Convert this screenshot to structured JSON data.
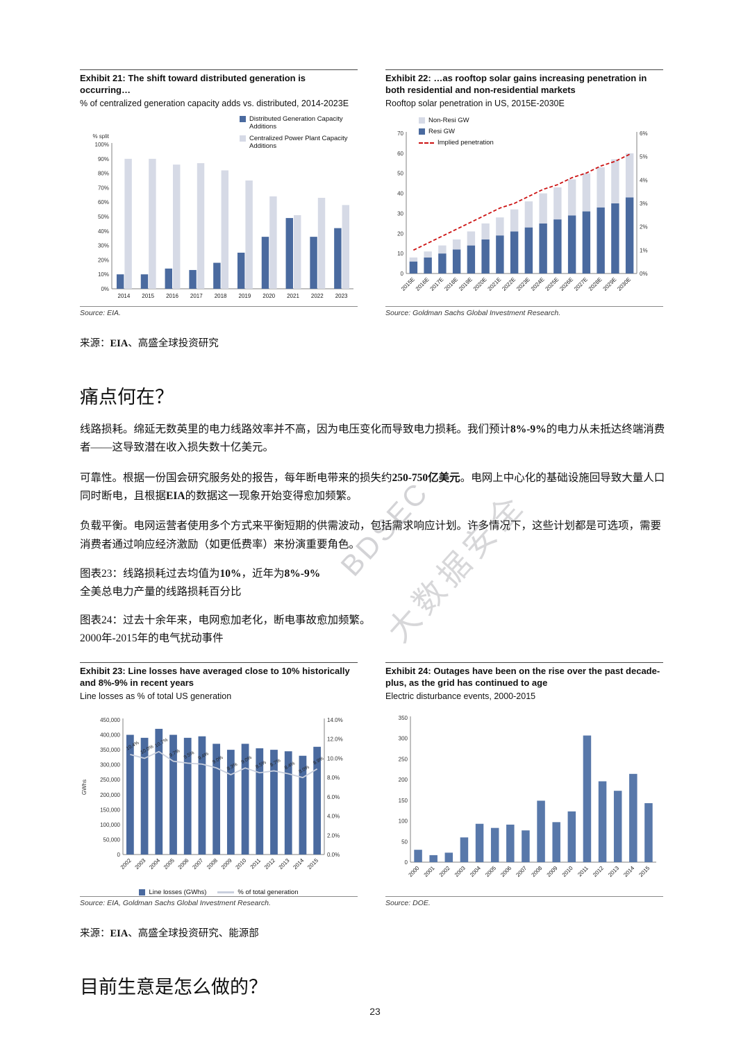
{
  "page_number": "23",
  "watermark": {
    "en": "BDSEC",
    "cn": "大数据安全"
  },
  "sections": {
    "pain_heading": "痛点何在？",
    "business_heading": "目前生意是怎么做的？",
    "paragraphs": {
      "p1": {
        "s1": "线路损耗。绵延无数英里的电力线路效率并不高，因为电压变化而导致电力损耗。我们预计",
        "b1": "8%-9%",
        "s2": "的电力从未抵达终端消费者——这导致潜在收入损失数十亿美元。"
      },
      "p2": {
        "s1": "可靠性。根据一份国会研究服务处的报告，每年断电带来的损失约",
        "b1": "250-750亿美元",
        "s2": "。电网上中心化的基础设施回导致大量人口同时断电，且根据",
        "b2": "EIA",
        "s3": "的数据这一现象开始变得愈加频繁。"
      },
      "p3": {
        "s1": "负载平衡。电网运营者使用多个方式来平衡短期的供需波动，包括需求响应计划。许多情况下，这些计划都是可选项，需要消费者通过响应经济激励（如更低费率）来扮演重要角色。"
      }
    },
    "fig23_caption": {
      "s1": "图表23：线路损耗过去均值为",
      "b1": "10%",
      "s2": "，近年为",
      "b2": "8%-9%",
      "line2": "全美总电力产量的线路损耗百分比"
    },
    "fig24_caption": {
      "line1": "图表24：过去十余年来，电网愈加老化，断电事故愈加频繁。",
      "line2": "2000年-2015年的电气扰动事件"
    },
    "source_top": {
      "pre": "来源：",
      "b": "EIA",
      "post": "、高盛全球投资研究"
    },
    "source_bottom": {
      "pre": "来源：",
      "b": "EIA",
      "post": "、高盛全球投资研究、能源部"
    }
  },
  "chart_data": [
    {
      "id": "ex21",
      "type": "bar",
      "variant": "grouped",
      "title": "Exhibit 21: The shift toward distributed generation is occurring…",
      "subtitle": "% of centralized generation capacity adds vs. distributed, 2014-2023E",
      "axis_note": "% split",
      "categories": [
        "2014",
        "2015",
        "2016",
        "2017",
        "2018",
        "2019",
        "2020",
        "2021",
        "2022",
        "2023"
      ],
      "series": [
        {
          "name": "Distributed Generation Capacity Additions",
          "color": "#4a6a9f",
          "values": [
            10,
            10,
            14,
            13,
            18,
            25,
            36,
            49,
            36,
            42
          ]
        },
        {
          "name": "Centralized Power Plant Capacity Additions",
          "color": "#d6dae6",
          "values": [
            90,
            90,
            86,
            87,
            82,
            75,
            64,
            51,
            63,
            58
          ]
        }
      ],
      "ylim": [
        0,
        100
      ],
      "ytick_step": 10,
      "yformat": "percent",
      "legend_position": "top-right",
      "source": "Source: EIA."
    },
    {
      "id": "ex22",
      "type": "bar",
      "variant": "stacked-with-line",
      "title": "Exhibit 22: …as rooftop solar gains increasing penetration in both residential and non-residential markets",
      "subtitle": "Rooftop solar penetration in US, 2015E-2030E",
      "categories": [
        "2015E",
        "2016E",
        "2017E",
        "2018E",
        "2019E",
        "2020E",
        "2021E",
        "2022E",
        "2023E",
        "2024E",
        "2025E",
        "2026E",
        "2027E",
        "2028E",
        "2029E",
        "2030E"
      ],
      "series": [
        {
          "name": "Resi GW",
          "color": "#4a6a9f",
          "values": [
            6,
            8,
            10,
            12,
            14,
            17,
            19,
            21,
            23,
            25,
            27,
            29,
            31,
            33,
            35,
            38
          ]
        },
        {
          "name": "Non-Resi GW",
          "color": "#d6dae6",
          "values": [
            2,
            3,
            4,
            5,
            7,
            8,
            9,
            11,
            13,
            15,
            16,
            18,
            19,
            20,
            22,
            22
          ]
        }
      ],
      "line": {
        "name": "Implied penetration",
        "color": "#cc1111",
        "dashed": true,
        "axis": "right",
        "values": [
          1.0,
          1.3,
          1.6,
          1.9,
          2.2,
          2.5,
          2.8,
          3.0,
          3.3,
          3.6,
          3.8,
          4.1,
          4.3,
          4.6,
          4.8,
          5.1
        ]
      },
      "ylim": [
        0,
        70
      ],
      "ytick_step": 10,
      "yformat": "plain",
      "y2lim": [
        0,
        6
      ],
      "y2tick_step": 1,
      "y2format": "percent",
      "legend_position": "top-left",
      "source": "Source: Goldman Sachs Global Investment Research."
    },
    {
      "id": "ex23",
      "type": "bar",
      "variant": "bar-with-line",
      "title": "Exhibit 23: Line losses have averaged close to 10% historically and 8%-9% in recent years",
      "subtitle": "Line losses as % of total US generation",
      "ylabel": "GWhs",
      "categories": [
        "2002",
        "2003",
        "2004",
        "2005",
        "2006",
        "2007",
        "2008",
        "2009",
        "2010",
        "2011",
        "2012",
        "2013",
        "2014",
        "2015"
      ],
      "series": [
        {
          "name": "Line losses (GWhs)",
          "color": "#4a6a9f",
          "values": [
            400000,
            390000,
            420000,
            400000,
            390000,
            395000,
            370000,
            350000,
            370000,
            355000,
            350000,
            345000,
            330000,
            360000
          ]
        }
      ],
      "line": {
        "name": "% of total generation",
        "color": "#c9cfdd",
        "dashed": false,
        "axis": "right",
        "values": [
          10.4,
          10.0,
          10.7,
          9.7,
          9.5,
          9.4,
          9.0,
          8.3,
          9.0,
          8.5,
          8.7,
          8.4,
          8.0,
          8.9
        ],
        "labels": true
      },
      "ylim": [
        0,
        450000
      ],
      "ytick_step": 50000,
      "yformat": "thousands",
      "y2lim": [
        0,
        14
      ],
      "y2tick_step": 2,
      "y2format": "percent1",
      "legend_position": "bottom",
      "source": "Source: EIA, Goldman Sachs Global Investment Research."
    },
    {
      "id": "ex24",
      "type": "bar",
      "variant": "single",
      "title": "Exhibit 24: Outages have been on the rise over the past decade-plus, as the grid has continued to age",
      "subtitle": "Electric disturbance events, 2000-2015",
      "categories": [
        "2000",
        "2001",
        "2002",
        "2003",
        "2004",
        "2005",
        "2006",
        "2007",
        "2008",
        "2009",
        "2010",
        "2011",
        "2012",
        "2013",
        "2014",
        "2015"
      ],
      "series": [
        {
          "name": "Electric disturbance events",
          "color": "#5878aa",
          "values": [
            30,
            17,
            23,
            60,
            93,
            83,
            91,
            77,
            149,
            97,
            123,
            307,
            196,
            173,
            214,
            143
          ]
        }
      ],
      "ylim": [
        0,
        350
      ],
      "ytick_step": 50,
      "yformat": "plain",
      "legend_position": "none",
      "source": "Source: DOE."
    }
  ]
}
